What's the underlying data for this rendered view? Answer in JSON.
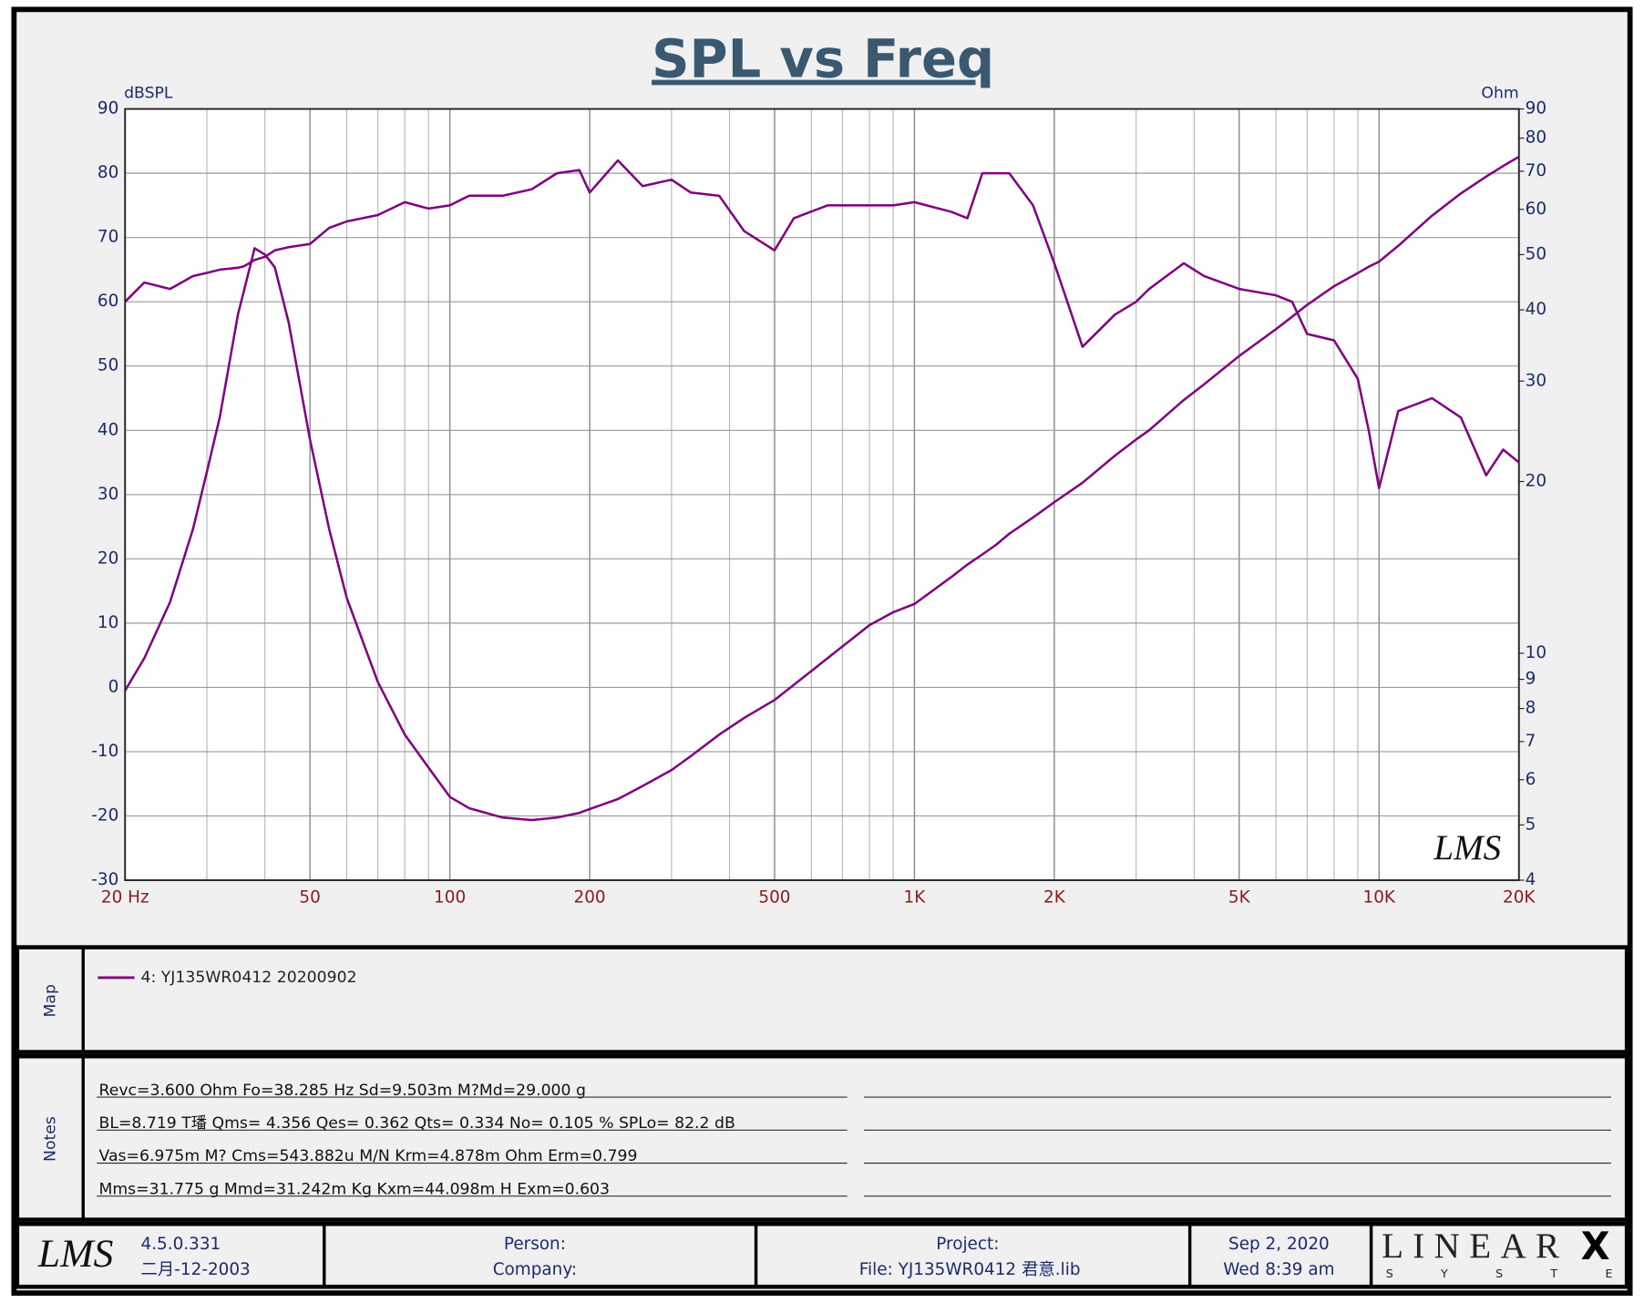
{
  "chart_data": {
    "type": "line",
    "title": "SPL vs Freq",
    "y_label": "dBSPL",
    "y2_label": "Ohm",
    "x": [
      20,
      22,
      25,
      28,
      30,
      32,
      35,
      36,
      38,
      40,
      42,
      45,
      50,
      55,
      60,
      70,
      80,
      90,
      100,
      110,
      130,
      150,
      170,
      190,
      200,
      230,
      260,
      300,
      330,
      380,
      430,
      500,
      550,
      650,
      800,
      900,
      1000,
      1200,
      1300,
      1400,
      1500,
      1600,
      1800,
      2000,
      2300,
      2700,
      3000,
      3200,
      3800,
      4200,
      5000,
      6000,
      6500,
      7000,
      8000,
      9000,
      9500,
      10000,
      11000,
      13000,
      15000,
      17000,
      18500,
      20000
    ],
    "series": [
      {
        "name": "4: YJ135WR0412 20200902",
        "color": "#800080",
        "values": [
          60,
          63,
          62,
          64,
          64.5,
          65,
          65.3,
          65.5,
          66.5,
          67,
          68,
          68.5,
          69,
          71.5,
          72.5,
          73.5,
          75.5,
          74.5,
          75,
          76.5,
          76.5,
          77.5,
          80,
          80.5,
          77,
          82,
          78,
          79,
          77,
          76.5,
          71,
          68,
          73,
          75,
          75,
          75,
          75.5,
          74,
          73,
          80,
          80,
          80,
          75,
          66,
          53,
          58,
          60,
          62,
          66,
          64,
          62,
          61,
          60,
          55,
          54,
          48,
          40,
          31,
          43,
          45,
          42,
          33,
          37,
          35
        ]
      },
      {
        "color": "#800080",
        "axis": "y2",
        "values": [
          8.6,
          9.8,
          12.3,
          16.5,
          20.8,
          26,
          39.3,
          43,
          51.3,
          50,
          47.5,
          38,
          23.7,
          16.5,
          12.5,
          8.9,
          7.2,
          6.3,
          5.6,
          5.35,
          5.15,
          5.1,
          5.15,
          5.25,
          5.33,
          5.55,
          5.85,
          6.24,
          6.6,
          7.2,
          7.7,
          8.28,
          8.8,
          9.8,
          11.2,
          11.8,
          12.2,
          13.6,
          14.3,
          14.9,
          15.5,
          16.2,
          17.3,
          18.4,
          19.9,
          22.2,
          23.7,
          24.6,
          27.8,
          29.6,
          33.2,
          37,
          38.9,
          40.8,
          44,
          46.4,
          47.6,
          48.6,
          51.8,
          58.5,
          64,
          68.5,
          71.5,
          74.2
        ]
      }
    ],
    "xlim": [
      20,
      20000
    ],
    "xlog": true,
    "xticks": [
      {
        "value": 20,
        "label": "20  Hz"
      },
      50,
      100,
      200,
      500,
      {
        "value": 1000,
        "label": "1K"
      },
      {
        "value": 2000,
        "label": "2K"
      },
      {
        "value": 5000,
        "label": "5K"
      },
      {
        "value": 10000,
        "label": "10K"
      },
      {
        "value": 20000,
        "label": "20K"
      }
    ],
    "ylim": [
      -30,
      90
    ],
    "yticks": [
      -30,
      -20,
      -10,
      0,
      10,
      20,
      30,
      40,
      50,
      60,
      70,
      80,
      90
    ],
    "y2lim": [
      4,
      90
    ],
    "y2log": true,
    "y2ticks": [
      4,
      5,
      6,
      7,
      8,
      9,
      10,
      20,
      30,
      40,
      50,
      60,
      70,
      80,
      90
    ],
    "grid": true
  },
  "map": {
    "label": "Map"
  },
  "notes": {
    "label": "Notes",
    "lines": [
      "Revc=3.600 Ohm  Fo=38.285 Hz  Sd=9.503m M?Md=29.000 g",
      "BL=8.719 T璠  Qms= 4.356  Qes= 0.362  Qts= 0.334  No= 0.105 %  SPLo= 82.2 dB",
      "Vas=6.975m M? Cms=543.882u M/N  Krm=4.878m Ohm  Erm=0.799",
      "Mms=31.775 g  Mmd=31.242m Kg  Kxm=44.098m H  Exm=0.603"
    ]
  },
  "footer": {
    "logo": "LMS",
    "version": "4.5.0.331",
    "version_date": "二月-12-2003",
    "person": "Person:",
    "company": "Company:",
    "project": "Project:",
    "file": "File: YJ135WR0412 君意.lib",
    "date": "Sep  2, 2020",
    "time": "Wed  8:39 am",
    "brand": "LINEAR",
    "brand_x": "X",
    "brand_sub": "S Y S T E M S"
  },
  "watermark": "LMS"
}
